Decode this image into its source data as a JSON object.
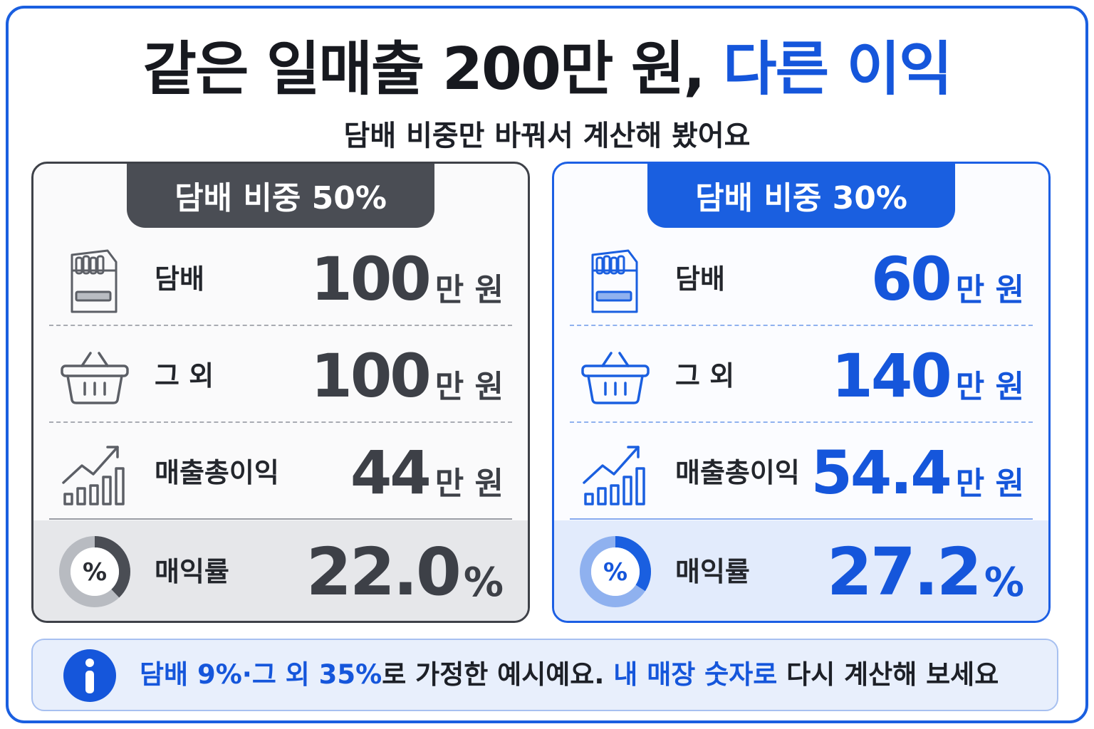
{
  "title": {
    "main": "같은 일매출 200만 원,",
    "accent": "다른 이익"
  },
  "subtitle": "담배 비중만 바꿔서 계산해 봤어요",
  "colors": {
    "accent": "#1a5fe0",
    "gray": "#4a4d54"
  },
  "cards": [
    {
      "tab": "담배 비중 50%",
      "rows": [
        {
          "icon": "cigarette-pack-icon",
          "label": "담배",
          "value": "100",
          "unit": "만 원"
        },
        {
          "icon": "shopping-basket-icon",
          "label": "그 외",
          "value": "100",
          "unit": "만 원"
        },
        {
          "icon": "growth-chart-icon",
          "label": "매출총이익",
          "value": "44",
          "unit": "만 원"
        },
        {
          "icon": "percent-donut-icon",
          "label": "매익률",
          "value": "22.0",
          "unit": "%"
        }
      ]
    },
    {
      "tab": "담배 비중 30%",
      "rows": [
        {
          "icon": "cigarette-pack-icon",
          "label": "담배",
          "value": "60",
          "unit": "만 원"
        },
        {
          "icon": "shopping-basket-icon",
          "label": "그 외",
          "value": "140",
          "unit": "만 원"
        },
        {
          "icon": "growth-chart-icon",
          "label": "매출총이익",
          "value": "54.4",
          "unit": "만 원"
        },
        {
          "icon": "percent-donut-icon",
          "label": "매익률",
          "value": "27.2",
          "unit": "%"
        }
      ]
    }
  ],
  "note": {
    "icon": "info-icon",
    "part1": "담배 9%·그 외 35%",
    "part2": "로 가정한 예시예요. ",
    "part3": "내 매장 숫자로",
    "part4": " 다시 계산해  보세요"
  }
}
